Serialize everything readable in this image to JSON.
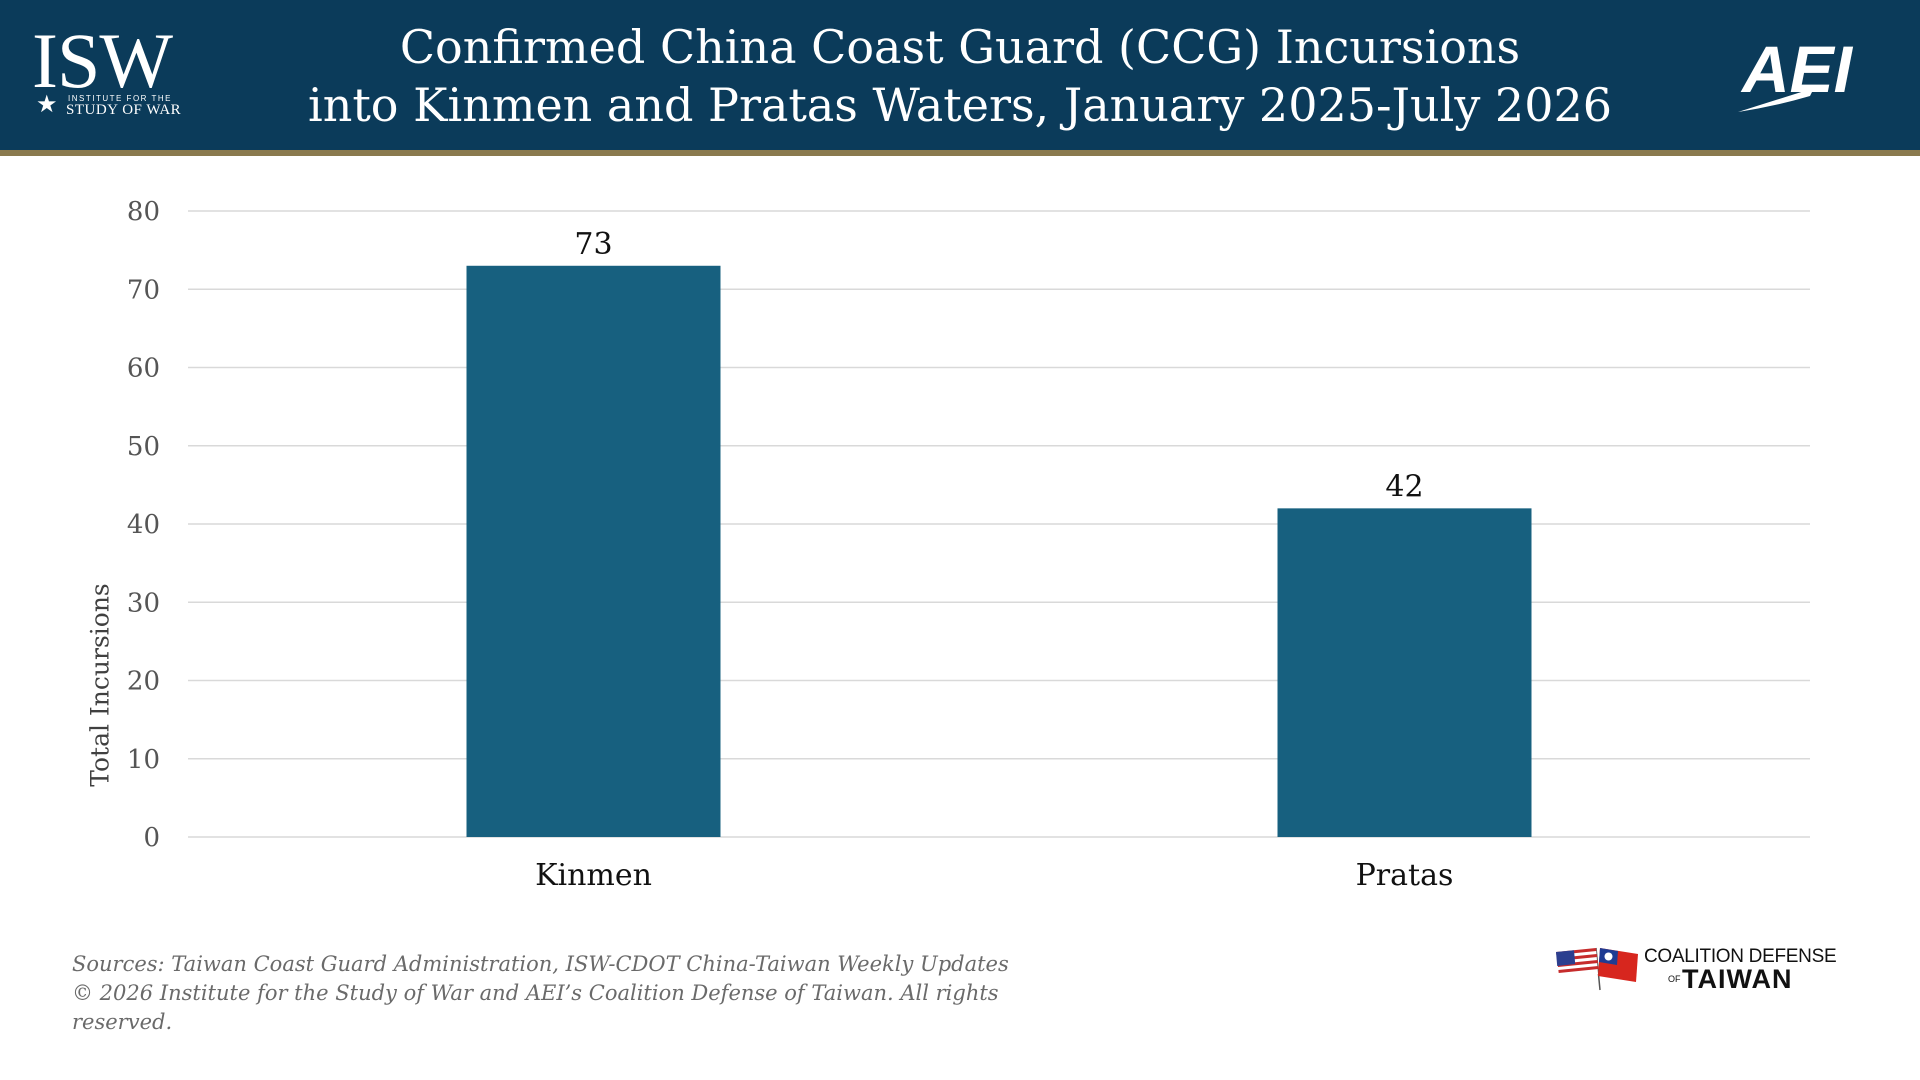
{
  "header": {
    "title_line1": "Confirmed China Coast Guard (CCG) Incursions",
    "title_line2": "into Kinmen and Pratas Waters, January 2025-July 2026",
    "isw_logo_letters": "ISW",
    "isw_logo_small1": "INSTITUTE FOR THE",
    "isw_logo_small2": "STUDY OF WAR",
    "aei_logo_text": "AEI"
  },
  "footer": {
    "sources_line1": "Sources: Taiwan Coast Guard Administration, ISW-CDOT China-Taiwan Weekly Updates",
    "sources_line2": "© 2026 Institute for the Study of War and AEI’s Coalition Defense of Taiwan. All rights",
    "sources_line3": "reserved.",
    "cdt_line1": "COALITION DEFENSE",
    "cdt_of": "OF",
    "cdt_line2": "TAIWAN"
  },
  "colors": {
    "header_bg": "#0b3b5a",
    "bar": "#17607f",
    "grid": "#d9d9d9"
  },
  "chart_data": {
    "type": "bar",
    "categories": [
      "Kinmen",
      "Pratas"
    ],
    "values": [
      73,
      42
    ],
    "data_labels": [
      "73",
      "42"
    ],
    "title": "Confirmed China Coast Guard (CCG) Incursions into Kinmen and Pratas Waters, January 2025-July 2026",
    "xlabel": "",
    "ylabel": "Total Incursions",
    "ylim": [
      0,
      80
    ],
    "yticks": [
      0,
      10,
      20,
      30,
      40,
      50,
      60,
      70,
      80
    ],
    "grid": true,
    "legend": "none"
  }
}
